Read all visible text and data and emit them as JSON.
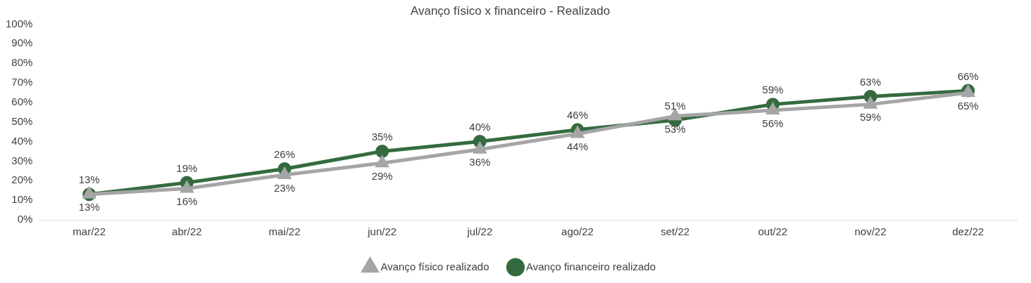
{
  "chart_data": {
    "type": "line",
    "title": "Avanço físico x financeiro - Realizado",
    "categories": [
      "mar/22",
      "abr/22",
      "mai/22",
      "jun/22",
      "jul/22",
      "ago/22",
      "set/22",
      "out/22",
      "nov/22",
      "dez/22"
    ],
    "series": [
      {
        "name": "Avanço físico realizado",
        "color": "#a5a5a5",
        "marker": "triangle",
        "values": [
          13,
          16,
          23,
          29,
          36,
          44,
          53,
          56,
          59,
          65
        ],
        "value_labels": [
          "13%",
          "16%",
          "23%",
          "29%",
          "36%",
          "44%",
          "53%",
          "56%",
          "59%",
          "65%"
        ]
      },
      {
        "name": "Avanço financeiro realizado",
        "color": "#346b3e",
        "marker": "circle",
        "values": [
          13,
          19,
          26,
          35,
          40,
          46,
          51,
          59,
          63,
          66
        ],
        "value_labels": [
          "13%",
          "19%",
          "26%",
          "35%",
          "40%",
          "46%",
          "51%",
          "59%",
          "63%",
          "66%"
        ]
      }
    ],
    "ylim": [
      0,
      100
    ],
    "yticks": [
      {
        "value": 0,
        "label": "0%"
      },
      {
        "value": 10,
        "label": "10%"
      },
      {
        "value": 20,
        "label": "20%"
      },
      {
        "value": 30,
        "label": "30%"
      },
      {
        "value": 40,
        "label": "40%"
      },
      {
        "value": 50,
        "label": "50%"
      },
      {
        "value": 60,
        "label": "60%"
      },
      {
        "value": 70,
        "label": "70%"
      },
      {
        "value": 80,
        "label": "80%"
      },
      {
        "value": 90,
        "label": "90%"
      },
      {
        "value": 100,
        "label": "100%"
      }
    ],
    "grid": false,
    "legend": "bottom",
    "line_style": "solid"
  }
}
